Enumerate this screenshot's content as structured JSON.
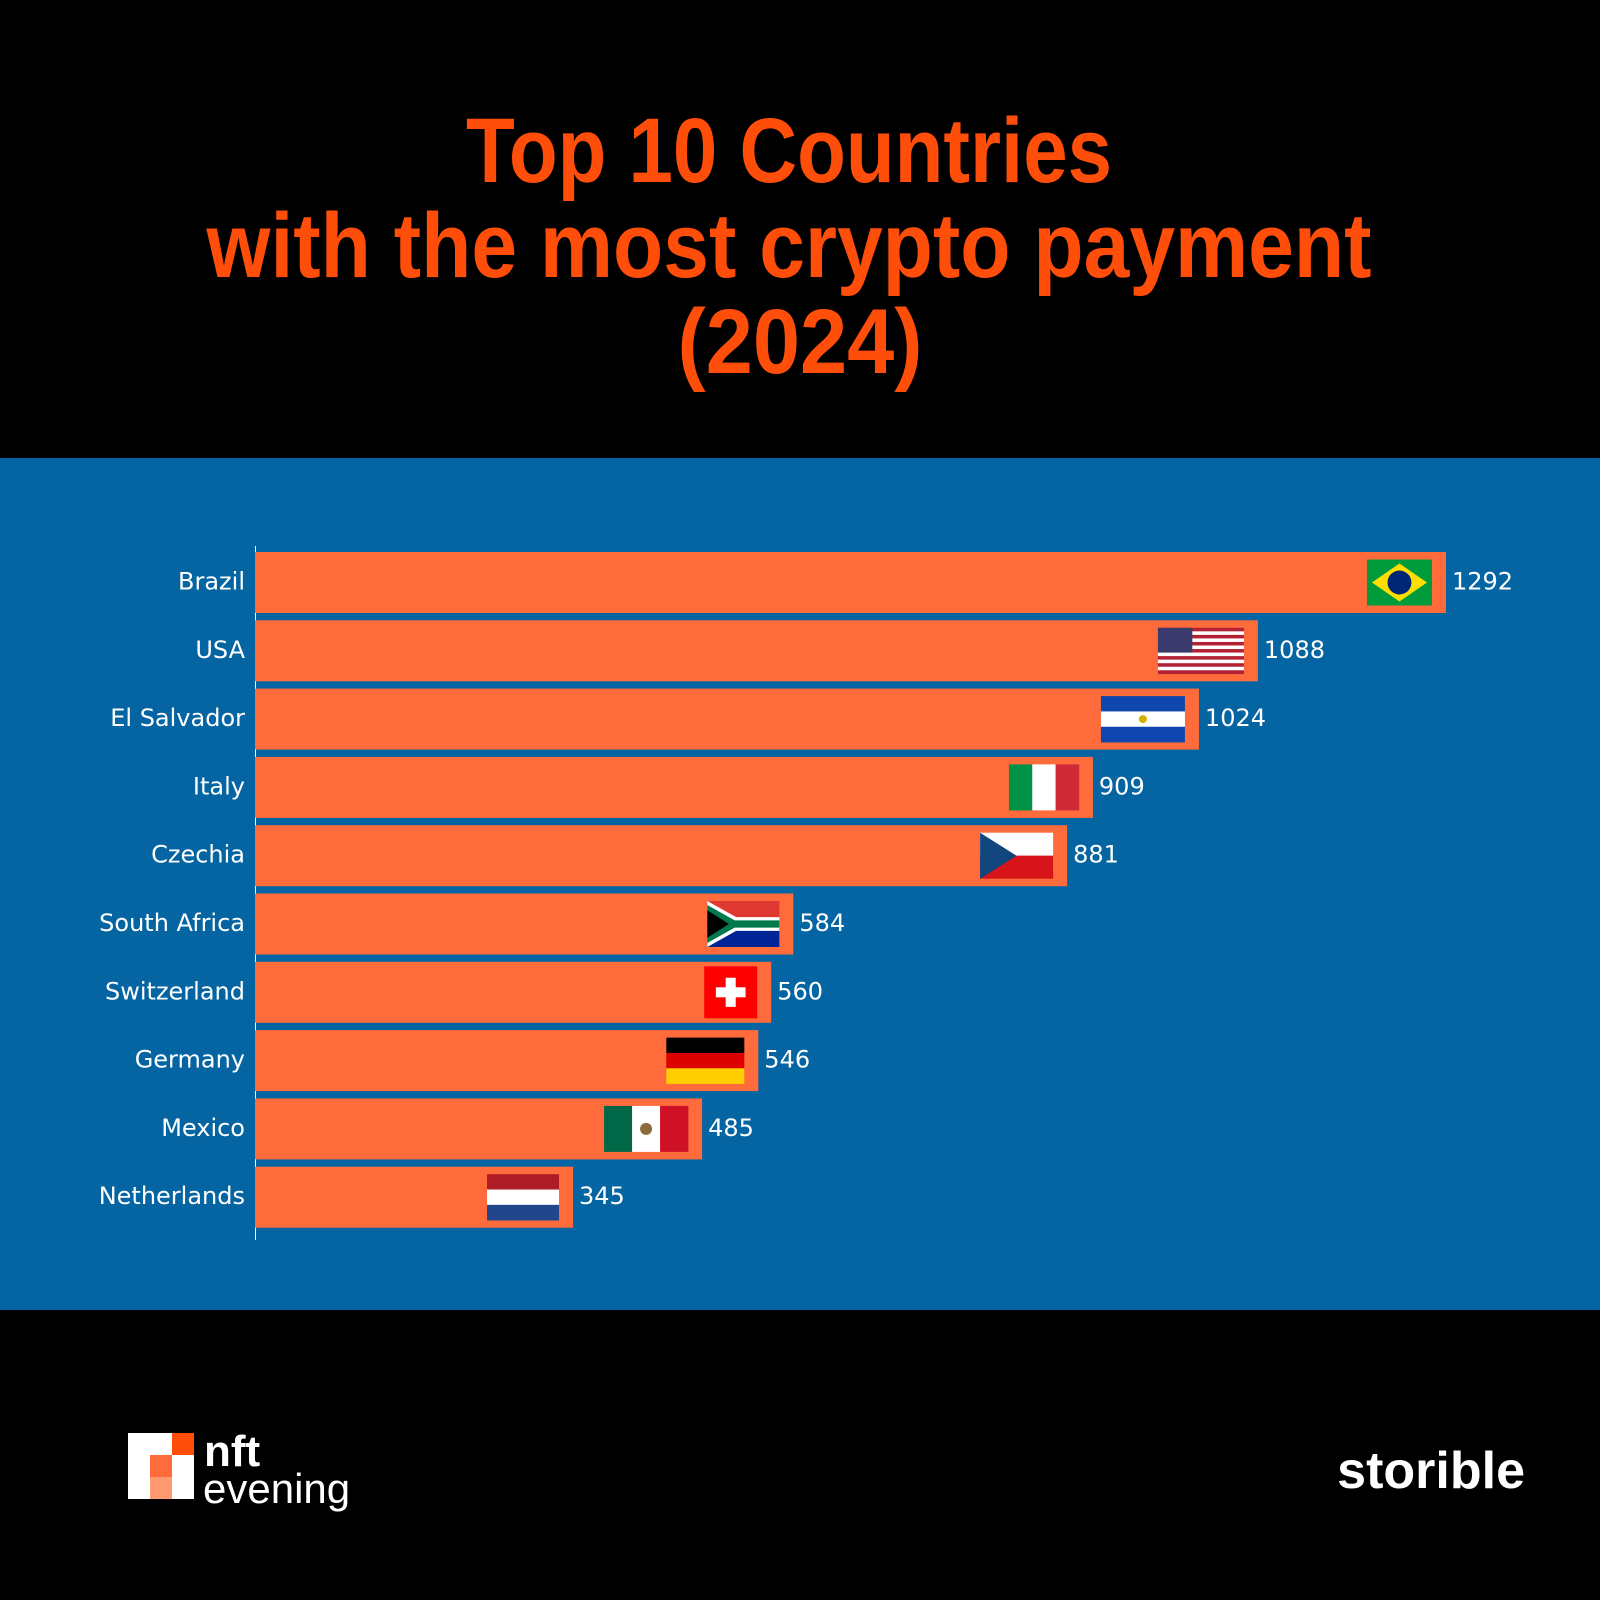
{
  "chart_data": {
    "type": "hbar",
    "title": [
      "Top 10 Countries",
      "with the most crypto payment",
      "(2024)"
    ],
    "categories": [
      "Brazil",
      "USA",
      "El Salvador",
      "Italy",
      "Czechia",
      "South Africa",
      "Switzerland",
      "Germany",
      "Mexico",
      "Netherlands"
    ],
    "values": [
      1292,
      1088,
      1024,
      909,
      881,
      584,
      560,
      546,
      485,
      345
    ],
    "color": "#ff6b3a",
    "xlim": [
      0,
      1400
    ]
  },
  "logos": {
    "left": [
      "nft",
      "evening"
    ],
    "right": "storible"
  }
}
